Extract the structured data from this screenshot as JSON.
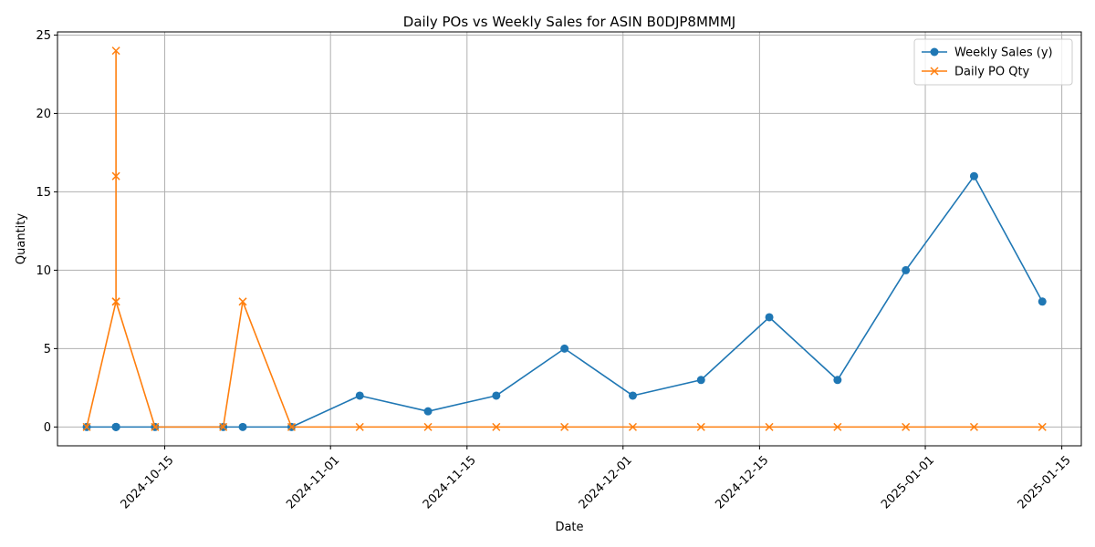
{
  "chart_data": {
    "type": "line",
    "title": "Daily POs vs Weekly Sales for ASIN B0DJP8MMMJ",
    "xlabel": "Date",
    "ylabel": "Quantity",
    "x_axis": "date",
    "xlim": [
      "2024-10-04",
      "2025-01-17"
    ],
    "ylim": [
      -1.2,
      25.2
    ],
    "x_ticks": [
      "2024-10-15",
      "2024-11-01",
      "2024-11-15",
      "2024-12-01",
      "2024-12-15",
      "2025-01-01",
      "2025-01-15"
    ],
    "y_ticks": [
      0,
      5,
      10,
      15,
      20,
      25
    ],
    "grid": true,
    "legend_position": "top-right",
    "series": [
      {
        "name": "Weekly Sales (y)",
        "color": "#1f77b4",
        "marker": "circle",
        "points": [
          [
            "2024-10-07",
            0
          ],
          [
            "2024-10-10",
            0
          ],
          [
            "2024-10-10",
            0
          ],
          [
            "2024-10-10",
            0
          ],
          [
            "2024-10-14",
            0
          ],
          [
            "2024-10-21",
            0
          ],
          [
            "2024-10-23",
            0
          ],
          [
            "2024-10-28",
            0
          ],
          [
            "2024-11-04",
            2
          ],
          [
            "2024-11-11",
            1
          ],
          [
            "2024-11-18",
            2
          ],
          [
            "2024-11-25",
            5
          ],
          [
            "2024-12-02",
            2
          ],
          [
            "2024-12-09",
            3
          ],
          [
            "2024-12-16",
            7
          ],
          [
            "2024-12-23",
            3
          ],
          [
            "2024-12-30",
            10
          ],
          [
            "2025-01-06",
            16
          ],
          [
            "2025-01-13",
            8
          ]
        ]
      },
      {
        "name": "Daily PO Qty",
        "color": "#ff7f0e",
        "marker": "x",
        "points": [
          [
            "2024-10-07",
            0
          ],
          [
            "2024-10-10",
            8
          ],
          [
            "2024-10-10",
            24
          ],
          [
            "2024-10-10",
            16
          ],
          [
            "2024-10-10",
            8
          ],
          [
            "2024-10-14",
            0
          ],
          [
            "2024-10-21",
            0
          ],
          [
            "2024-10-23",
            8
          ],
          [
            "2024-10-28",
            0
          ],
          [
            "2024-11-04",
            0
          ],
          [
            "2024-11-11",
            0
          ],
          [
            "2024-11-18",
            0
          ],
          [
            "2024-11-25",
            0
          ],
          [
            "2024-12-02",
            0
          ],
          [
            "2024-12-09",
            0
          ],
          [
            "2024-12-16",
            0
          ],
          [
            "2024-12-23",
            0
          ],
          [
            "2024-12-30",
            0
          ],
          [
            "2025-01-06",
            0
          ],
          [
            "2025-01-13",
            0
          ]
        ]
      }
    ]
  }
}
